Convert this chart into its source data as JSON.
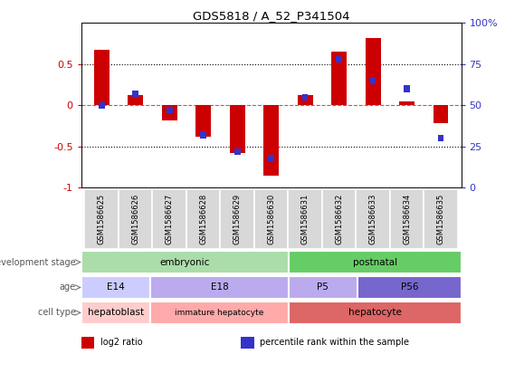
{
  "title": "GDS5818 / A_52_P341504",
  "samples": [
    "GSM1586625",
    "GSM1586626",
    "GSM1586627",
    "GSM1586628",
    "GSM1586629",
    "GSM1586630",
    "GSM1586631",
    "GSM1586632",
    "GSM1586633",
    "GSM1586634",
    "GSM1586635"
  ],
  "log2_ratio": [
    0.67,
    0.12,
    -0.18,
    -0.38,
    -0.58,
    -0.85,
    0.12,
    0.65,
    0.82,
    0.05,
    -0.22
  ],
  "percentile": [
    50,
    57,
    47,
    32,
    22,
    18,
    55,
    78,
    65,
    60,
    30
  ],
  "log2_color": "#cc0000",
  "percentile_color": "#3333cc",
  "left_ylim": [
    -1,
    1
  ],
  "right_ylim": [
    0,
    100
  ],
  "left_yticks": [
    -1,
    -0.5,
    0,
    0.5
  ],
  "left_yticklabels": [
    "-1",
    "-0.5",
    "0",
    "0.5"
  ],
  "right_yticks": [
    0,
    25,
    50,
    75,
    100
  ],
  "right_yticklabels": [
    "0",
    "25",
    "50",
    "75",
    "100%"
  ],
  "groups": {
    "development_stage": [
      {
        "label": "embryonic",
        "start": 0,
        "end": 5,
        "color": "#aaddaa"
      },
      {
        "label": "postnatal",
        "start": 6,
        "end": 10,
        "color": "#66cc66"
      }
    ],
    "age": [
      {
        "label": "E14",
        "start": 0,
        "end": 1,
        "color": "#ccccff"
      },
      {
        "label": "E18",
        "start": 2,
        "end": 5,
        "color": "#bbaaee"
      },
      {
        "label": "P5",
        "start": 6,
        "end": 7,
        "color": "#bbaaee"
      },
      {
        "label": "P56",
        "start": 8,
        "end": 10,
        "color": "#7766cc"
      }
    ],
    "cell_type": [
      {
        "label": "hepatoblast",
        "start": 0,
        "end": 1,
        "color": "#ffcccc"
      },
      {
        "label": "immature hepatocyte",
        "start": 2,
        "end": 5,
        "color": "#ffaaaa"
      },
      {
        "label": "hepatocyte",
        "start": 6,
        "end": 10,
        "color": "#dd6666"
      }
    ]
  },
  "row_labels": [
    "development stage",
    "age",
    "cell type"
  ],
  "legend_items": [
    {
      "label": "log2 ratio",
      "color": "#cc0000"
    },
    {
      "label": "percentile rank within the sample",
      "color": "#3333cc"
    }
  ]
}
